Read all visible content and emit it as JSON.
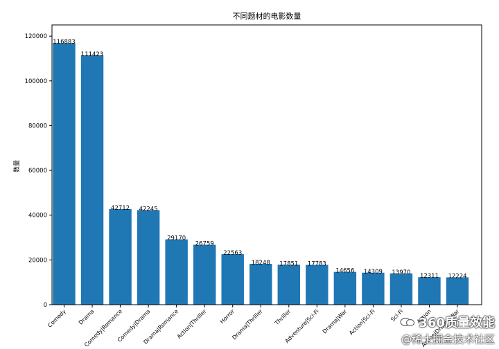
{
  "chart_data": {
    "type": "bar",
    "title": "不同题材的电影数量",
    "xlabel": "",
    "ylabel": "数量",
    "ylim": [
      0,
      125000
    ],
    "yticks": [
      0,
      20000,
      40000,
      60000,
      80000,
      100000,
      120000
    ],
    "grid": false,
    "categories": [
      "Comedy",
      "Drama",
      "Comedy|Romance",
      "Comedy|Drama",
      "Drama|Romance",
      "Action|Thriller",
      "Horror",
      "Drama|Thriller",
      "Thriller",
      "Adventure|Sci-Fi",
      "Drama|War",
      "Action|Sci-Fi",
      "Sci-Fi",
      "Action",
      "Action|Drama|War"
    ],
    "values": [
      116883,
      111423,
      42712,
      42245,
      29170,
      26759,
      22563,
      18248,
      17851,
      17783,
      14656,
      14309,
      13970,
      12311,
      12224
    ],
    "bar_color": "#1f77b4"
  },
  "watermark": {
    "brand": "360质量效能",
    "sub": "@稀土掘金技术社区"
  }
}
